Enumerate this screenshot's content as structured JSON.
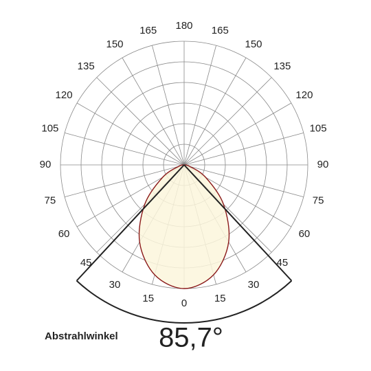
{
  "chart_data": {
    "type": "polar",
    "angle_ticks": [
      0,
      15,
      30,
      45,
      60,
      75,
      90,
      105,
      120,
      135,
      150,
      165,
      180
    ],
    "angles": [
      -90,
      -75,
      -60,
      -45,
      -30,
      -15,
      0,
      15,
      30,
      45,
      60,
      75,
      90
    ],
    "values": [
      0,
      4.5,
      20,
      45,
      72,
      92,
      100,
      92,
      72,
      45,
      20,
      4.5,
      0
    ],
    "rlim": [
      0,
      100
    ],
    "color": "#8b1a1a",
    "fill": "#fcf6dc",
    "beam": {
      "name": "Abstrahlwinkel",
      "values": [
        85.7
      ],
      "value_labels": [
        "85,7°"
      ]
    }
  }
}
